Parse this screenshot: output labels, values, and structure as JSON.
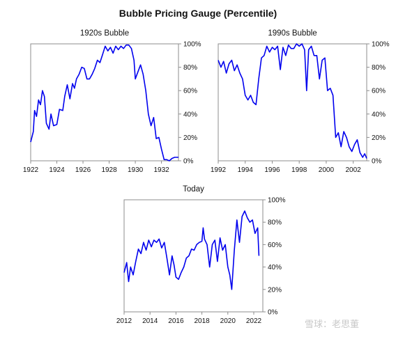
{
  "title": "Bubble Pricing Gauge (Percentile)",
  "watermark": "雪球：老思董",
  "chart_data": [
    {
      "type": "line",
      "title": "1920s Bubble",
      "xlim": [
        1922,
        1933.3
      ],
      "ylim": [
        0,
        100
      ],
      "x_ticks": [
        "1922",
        "1924",
        "1926",
        "1928",
        "1930",
        "1932"
      ],
      "y_ticks": [
        "0%",
        "20%",
        "40%",
        "60%",
        "80%",
        "100%"
      ],
      "grid": false,
      "series": [
        {
          "color": "#0000ee",
          "x": [
            1922.0,
            1922.2,
            1922.3,
            1922.45,
            1922.6,
            1922.75,
            1922.9,
            1923.05,
            1923.2,
            1923.4,
            1923.55,
            1923.75,
            1924.0,
            1924.2,
            1924.45,
            1924.6,
            1924.8,
            1925.0,
            1925.2,
            1925.35,
            1925.5,
            1925.7,
            1925.9,
            1926.1,
            1926.3,
            1926.5,
            1926.7,
            1926.9,
            1927.1,
            1927.3,
            1927.5,
            1927.7,
            1927.9,
            1928.1,
            1928.3,
            1928.5,
            1928.7,
            1928.9,
            1929.1,
            1929.3,
            1929.5,
            1929.7,
            1929.9,
            1930.0,
            1930.2,
            1930.4,
            1930.6,
            1930.8,
            1931.0,
            1931.2,
            1931.4,
            1931.6,
            1931.8,
            1932.0,
            1932.2,
            1932.4,
            1932.6,
            1932.8,
            1933.0,
            1933.2,
            1933.3
          ],
          "y": [
            16,
            25,
            43,
            38,
            52,
            48,
            60,
            55,
            32,
            27,
            40,
            30,
            31,
            44,
            43,
            55,
            65,
            53,
            66,
            62,
            70,
            74,
            80,
            79,
            70,
            70,
            74,
            79,
            86,
            84,
            91,
            98,
            94,
            97,
            92,
            98,
            95,
            98,
            96,
            99,
            99,
            96,
            86,
            70,
            76,
            82,
            74,
            60,
            40,
            30,
            37,
            19,
            20,
            10,
            1,
            1,
            0,
            2,
            3,
            3,
            3
          ]
        }
      ]
    },
    {
      "type": "line",
      "title": "1990s Bubble",
      "xlim": [
        1992,
        2003
      ],
      "ylim": [
        0,
        100
      ],
      "x_ticks": [
        "1992",
        "1994",
        "1996",
        "1998",
        "2000",
        "2002"
      ],
      "y_ticks": [
        "0%",
        "20%",
        "40%",
        "60%",
        "80%",
        "100%"
      ],
      "grid": false,
      "series": [
        {
          "color": "#0000ee",
          "x": [
            1992.0,
            1992.2,
            1992.4,
            1992.6,
            1992.8,
            1993.0,
            1993.2,
            1993.4,
            1993.6,
            1993.8,
            1994.0,
            1994.2,
            1994.4,
            1994.6,
            1994.8,
            1995.0,
            1995.2,
            1995.4,
            1995.6,
            1995.8,
            1996.0,
            1996.2,
            1996.4,
            1996.6,
            1996.8,
            1997.0,
            1997.2,
            1997.4,
            1997.6,
            1997.8,
            1998.0,
            1998.2,
            1998.4,
            1998.55,
            1998.7,
            1998.9,
            1999.1,
            1999.3,
            1999.5,
            1999.7,
            1999.9,
            2000.1,
            2000.3,
            2000.5,
            2000.7,
            2000.9,
            2001.1,
            2001.3,
            2001.5,
            2001.7,
            2001.9,
            2002.1,
            2002.3,
            2002.5,
            2002.7,
            2002.85,
            2003.0
          ],
          "y": [
            86,
            80,
            85,
            75,
            83,
            86,
            77,
            82,
            75,
            70,
            56,
            52,
            56,
            50,
            48,
            70,
            88,
            90,
            98,
            93,
            97,
            95,
            98,
            78,
            97,
            90,
            99,
            96,
            96,
            100,
            98,
            100,
            95,
            60,
            95,
            98,
            90,
            90,
            70,
            86,
            88,
            60,
            62,
            56,
            20,
            24,
            12,
            25,
            20,
            12,
            8,
            14,
            18,
            7,
            3,
            6,
            2
          ]
        }
      ]
    },
    {
      "type": "line",
      "title": "Today",
      "xlim": [
        2012,
        2022.7
      ],
      "ylim": [
        0,
        100
      ],
      "x_ticks": [
        "2012",
        "2014",
        "2016",
        "2018",
        "2020",
        "2022"
      ],
      "y_ticks": [
        "0%",
        "20%",
        "40%",
        "60%",
        "80%",
        "100%"
      ],
      "grid": false,
      "series": [
        {
          "color": "#0000ee",
          "x": [
            2012.0,
            2012.2,
            2012.35,
            2012.5,
            2012.7,
            2012.9,
            2013.1,
            2013.3,
            2013.5,
            2013.7,
            2013.9,
            2014.1,
            2014.3,
            2014.5,
            2014.7,
            2014.9,
            2015.1,
            2015.3,
            2015.5,
            2015.7,
            2015.85,
            2016.0,
            2016.2,
            2016.4,
            2016.6,
            2016.8,
            2017.0,
            2017.2,
            2017.4,
            2017.6,
            2017.8,
            2018.0,
            2018.1,
            2018.2,
            2018.4,
            2018.6,
            2018.8,
            2019.0,
            2019.2,
            2019.4,
            2019.6,
            2019.8,
            2020.0,
            2020.15,
            2020.3,
            2020.5,
            2020.7,
            2020.9,
            2021.1,
            2021.3,
            2021.5,
            2021.7,
            2021.9,
            2022.1,
            2022.3,
            2022.4
          ],
          "y": [
            35,
            44,
            27,
            40,
            33,
            45,
            56,
            52,
            62,
            55,
            64,
            58,
            64,
            62,
            65,
            57,
            62,
            48,
            33,
            50,
            42,
            31,
            29,
            35,
            40,
            48,
            50,
            56,
            55,
            60,
            62,
            63,
            75,
            65,
            60,
            40,
            60,
            64,
            45,
            66,
            55,
            60,
            40,
            33,
            20,
            55,
            82,
            62,
            85,
            90,
            84,
            80,
            82,
            70,
            75,
            50
          ]
        }
      ]
    }
  ]
}
